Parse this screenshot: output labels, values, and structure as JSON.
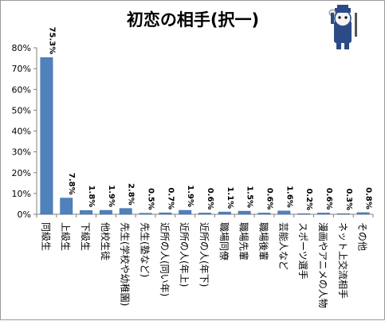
{
  "chart_data": {
    "type": "bar",
    "title": "初恋の相手(択一)",
    "xlabel": "",
    "ylabel": "",
    "ylim": [
      0,
      80
    ],
    "yticks": [
      "0%",
      "10%",
      "20%",
      "30%",
      "40%",
      "50%",
      "60%",
      "70%",
      "80%"
    ],
    "grid": false,
    "legend": "none",
    "categories": [
      "同級生",
      "上級生",
      "下級生",
      "他校生徒",
      "先生(学校や幼稚園)",
      "先生(塾など)",
      "近所の人(同い年)",
      "近所の人(年上)",
      "近所の人(年下)",
      "職場同僚",
      "職場先輩",
      "職場後輩",
      "芸能人など",
      "スポーツ選手",
      "漫画やアニメの人物",
      "ネット上交流相手",
      "その他"
    ],
    "values": [
      75.3,
      7.8,
      1.8,
      1.9,
      2.8,
      0.5,
      0.7,
      1.9,
      0.6,
      1.1,
      1.5,
      0.6,
      1.6,
      0.2,
      0.6,
      0.3,
      0.8
    ],
    "value_labels": [
      "75.3%",
      "7.8%",
      "1.8%",
      "1.9%",
      "2.8%",
      "0.5%",
      "0.7%",
      "1.9%",
      "0.6%",
      "1.1%",
      "1.5%",
      "0.6%",
      "1.6%",
      "0.2%",
      "0.6%",
      "0.3%",
      "0.8%"
    ],
    "colors": {
      "bar": "#4f81bd",
      "bar_edge": "#3a679e",
      "axis": "#808080"
    }
  },
  "mascot": {
    "icon": "mascot-character-icon"
  }
}
